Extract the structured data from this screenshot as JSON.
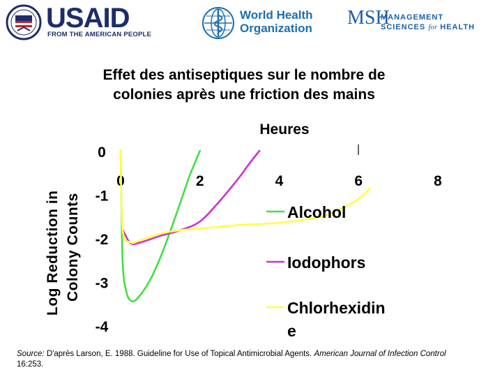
{
  "logos": {
    "usaid": {
      "name": "USAID",
      "tagline": "FROM THE AMERICAN PEOPLE"
    },
    "who": {
      "line1": "World Health",
      "line2": "Organization"
    },
    "msh": {
      "mark": "MSH",
      "line1": "MANAGEMENT",
      "line2_a": "SCIENCES",
      "line2_b": "for",
      "line2_c": "HEALTH"
    }
  },
  "chart_data": {
    "type": "line",
    "title_line1": "Effet des antiseptiques sur le nombre de",
    "title_line2": "colonies après une friction des mains",
    "xlabel": "Heures",
    "ylabel_line1": "Log Reduction in",
    "ylabel_line2": "Colony Counts",
    "x_ticks": [
      "0",
      "2",
      "4",
      "6",
      "8"
    ],
    "y_ticks": [
      "0",
      "-1",
      "-2",
      "-3",
      "-4"
    ],
    "xlim": [
      0,
      8
    ],
    "ylim": [
      -4,
      0
    ],
    "grid": false,
    "legend_position": "right",
    "series": [
      {
        "name": "Alcohol",
        "color": "#44dd44",
        "x": [
          0,
          0.05,
          0.15,
          0.3,
          0.5,
          0.75,
          1.0,
          1.25,
          1.5,
          1.75,
          2.0
        ],
        "y": [
          0,
          -2.5,
          -3.25,
          -3.45,
          -3.3,
          -2.95,
          -2.45,
          -1.85,
          -1.2,
          -0.55,
          0
        ]
      },
      {
        "name": "Iodophors",
        "color": "#cc33cc",
        "x": [
          0.05,
          0.25,
          0.5,
          1.0,
          1.5,
          2.0,
          2.5,
          3.0,
          3.2,
          3.5
        ],
        "y": [
          -1.8,
          -2.12,
          -2.1,
          -1.95,
          -1.82,
          -1.62,
          -1.15,
          -0.6,
          -0.35,
          0
        ]
      },
      {
        "name": "Chlorhexidine",
        "color": "#ffff44",
        "x": [
          0,
          0.05,
          0.25,
          0.5,
          1.0,
          1.5,
          2.0,
          3.0,
          4.0,
          5.0,
          5.5,
          6.0,
          6.3
        ],
        "y": [
          0,
          -1.8,
          -2.1,
          -2.05,
          -1.9,
          -1.82,
          -1.78,
          -1.7,
          -1.65,
          -1.52,
          -1.35,
          -1.1,
          -0.85
        ]
      }
    ],
    "legend_labels": [
      "Alcohol",
      "Iodophors",
      "Chlorhexidin",
      "e"
    ]
  },
  "source": {
    "prefix": "Source:",
    "text": " D'après Larson, E. 1988. Guideline for Use of Topical Antimicrobial Agents. ",
    "journal": "American Journal of Infection Control",
    "suffix": " 16:253."
  }
}
